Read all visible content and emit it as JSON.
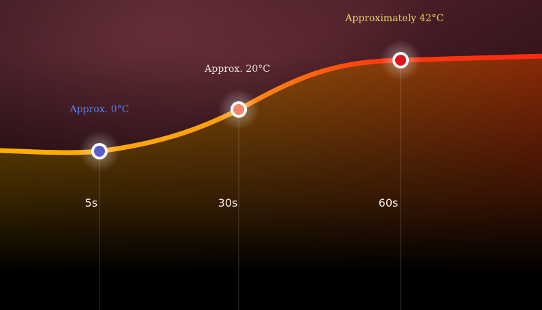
{
  "points": [
    {
      "time": "5s",
      "label": "Approx. 0°C"
    },
    {
      "time": "30s",
      "label": "Approx. 20°C"
    },
    {
      "time": "60s",
      "label": "Approximately 42°C"
    }
  ]
}
